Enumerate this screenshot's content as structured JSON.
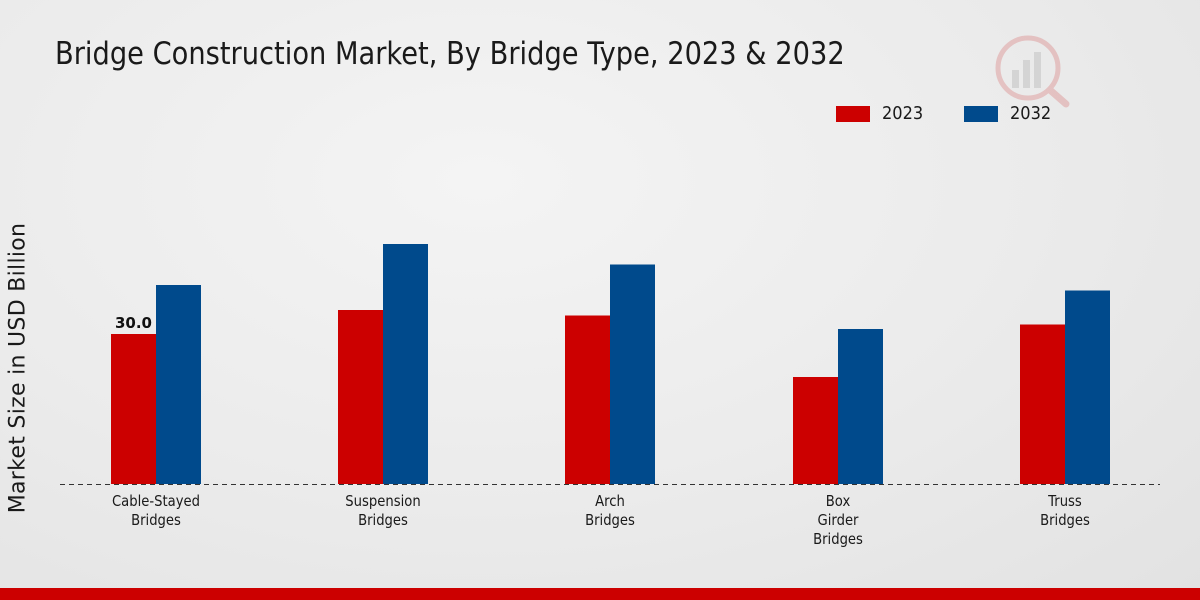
{
  "chart_data": {
    "type": "bar",
    "title": "Bridge Construction Market, By Bridge Type, 2023 & 2032",
    "ylabel": "Market Size in USD Billion",
    "xlabel": "",
    "categories": [
      [
        "Cable-Stayed",
        "Bridges"
      ],
      [
        "Suspension",
        "Bridges"
      ],
      [
        "Arch",
        "Bridges"
      ],
      [
        "Box",
        "Girder",
        "Bridges"
      ],
      [
        "Truss",
        "Bridges"
      ]
    ],
    "series": [
      {
        "name": "2023",
        "color": "#cc0000",
        "values": [
          30.0,
          34.8,
          33.7,
          21.4,
          31.9
        ]
      },
      {
        "name": "2032",
        "color": "#004a8c",
        "values": [
          39.8,
          48.0,
          43.9,
          31.0,
          38.7
        ]
      }
    ],
    "data_labels": [
      {
        "series": 0,
        "index": 0,
        "text": "30.0"
      }
    ],
    "ylim": [
      0,
      60
    ],
    "grid": false,
    "legend_position": "top-right",
    "baseline_style": "dashed"
  }
}
